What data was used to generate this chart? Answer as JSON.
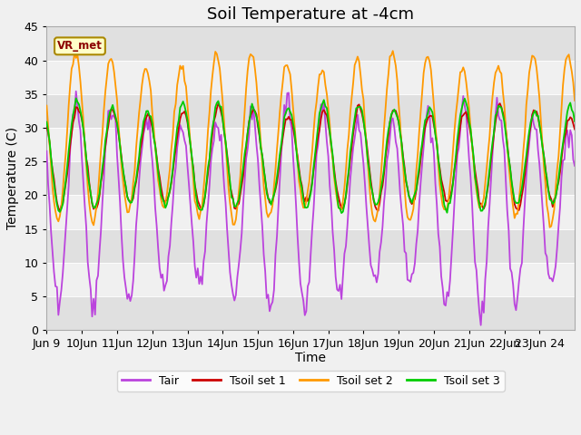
{
  "title": "Soil Temperature at -4cm",
  "xlabel": "Time",
  "ylabel": "Temperature (C)",
  "ylim": [
    0,
    45
  ],
  "label_box": "VR_met",
  "colors": {
    "Tair": "#bb44dd",
    "Tsoil1": "#cc0000",
    "Tsoil2": "#ff9900",
    "Tsoil3": "#00cc00"
  },
  "legend_labels": [
    "Tair",
    "Tsoil set 1",
    "Tsoil set 2",
    "Tsoil set 3"
  ],
  "bg_color": "#f0f0f0",
  "band_light": "#f0f0f0",
  "band_dark": "#e0e0e0",
  "title_fontsize": 13,
  "axis_fontsize": 10,
  "tick_fontsize": 9,
  "linewidth": 1.3
}
